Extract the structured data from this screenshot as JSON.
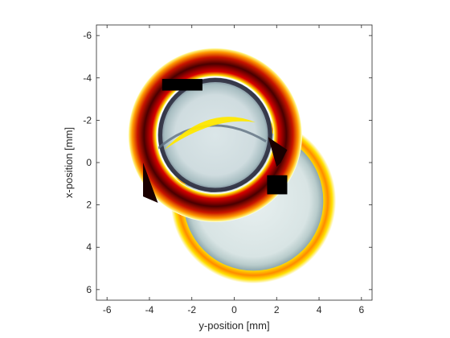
{
  "chart_data": {
    "type": "heatmap",
    "title": "",
    "xlabel": "y-position [mm]",
    "ylabel": "x-position [mm]",
    "xlim": [
      -6.5,
      6.5
    ],
    "ylim": [
      -6.5,
      6.5
    ],
    "y_axis_reversed": true,
    "x_ticks": [
      -6,
      -4,
      -2,
      0,
      2,
      4,
      6
    ],
    "y_ticks": [
      -6,
      -4,
      -2,
      0,
      2,
      4,
      6
    ],
    "grid": false,
    "colormap": "bone (lower image) overlaid with hot (upper ring)",
    "features": [
      {
        "kind": "disc",
        "colormap": "bone",
        "center": [
          0.9,
          1.8
        ],
        "radius": 3.3
      },
      {
        "kind": "ring",
        "colormap": "hot",
        "center": [
          0.9,
          1.8
        ],
        "inner_radius": 3.05,
        "outer_radius": 3.9
      },
      {
        "kind": "disc",
        "colormap": "bone",
        "center": [
          -0.9,
          -1.3
        ],
        "radius": 2.7
      },
      {
        "kind": "ring",
        "colormap": "hot",
        "center": [
          -0.9,
          -1.3
        ],
        "inner_radius": 2.75,
        "outer_radius": 4.1
      },
      {
        "kind": "masked-rectangle",
        "y_range": [
          -3.4,
          -1.5
        ],
        "x_range": [
          -3.95,
          -3.4
        ]
      },
      {
        "kind": "masked-rectangle",
        "y_range": [
          1.55,
          2.5
        ],
        "x_range": [
          0.6,
          1.5
        ]
      }
    ]
  },
  "colors": {
    "axis": "#262626",
    "mask": "#000000",
    "bone_light": "#dfe9ea",
    "bone_dark": "#2b2b3c",
    "hot_dark": "#5a0000",
    "hot_red": "#e01e00",
    "hot_yellow": "#ffe800"
  }
}
